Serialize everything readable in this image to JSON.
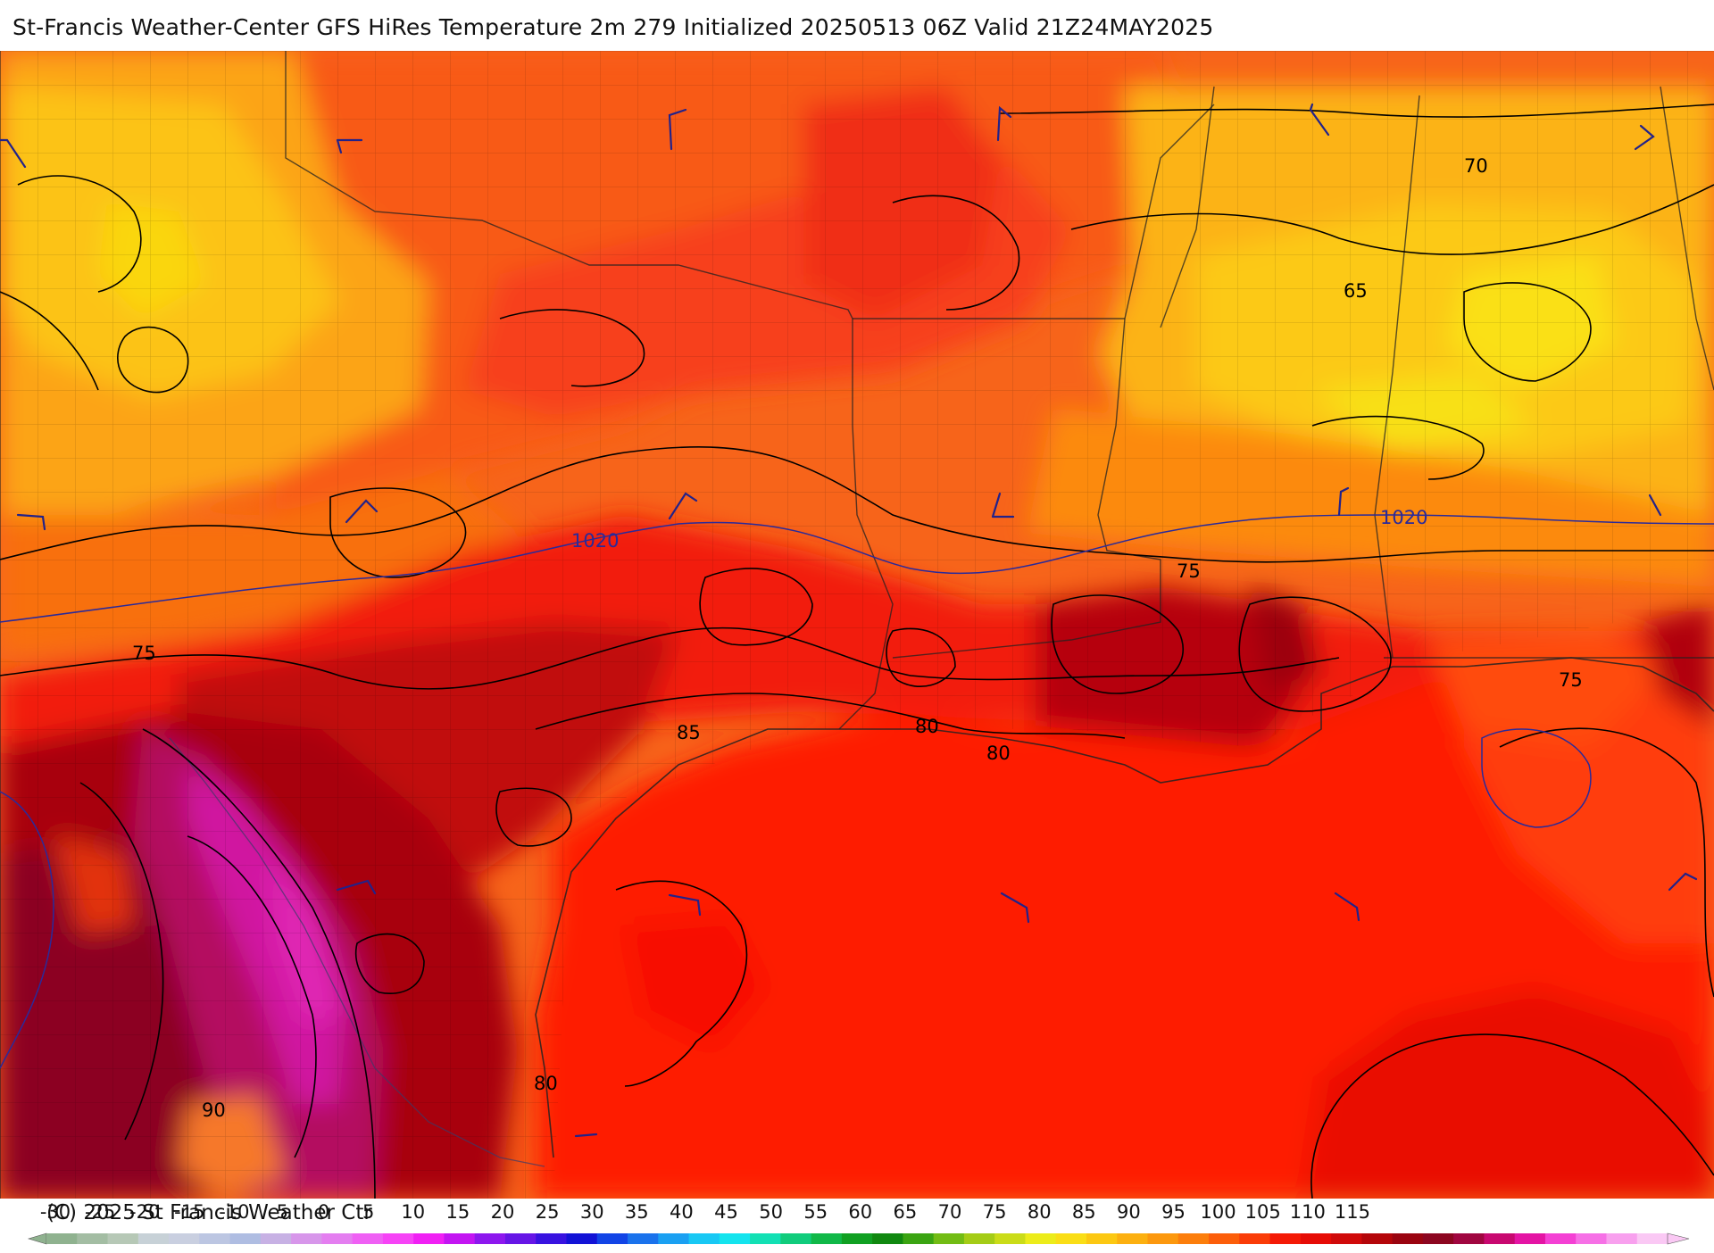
{
  "header": {
    "title": "St-Francis Weather-Center GFS HiRes Temperature 2m  279 Initialized 20250513 06Z Valid 21Z24MAY2025"
  },
  "footer": {
    "copyright": "(C) 2025 St Francis Weather Ctr"
  },
  "map": {
    "variable": "Temperature 2m",
    "isotherm_labels": [
      "70",
      "65",
      "75",
      "75",
      "75",
      "80",
      "80",
      "80",
      "85",
      "90"
    ],
    "isobar_labels": [
      "1020",
      "1020"
    ],
    "isotherm_color": "#000000",
    "isobar_color": "#2a2a9a",
    "wind_barb_color": "#22228a"
  },
  "legend": {
    "ticks": [
      "-30",
      "-25",
      "-20",
      "-15",
      "-10",
      "-5",
      "0",
      "5",
      "10",
      "15",
      "20",
      "25",
      "30",
      "35",
      "40",
      "45",
      "50",
      "55",
      "60",
      "65",
      "70",
      "75",
      "80",
      "85",
      "90",
      "95",
      "100",
      "105",
      "110",
      "115"
    ],
    "colors": [
      "#8fb28f",
      "#a3bda3",
      "#b6c8b6",
      "#c7d1d7",
      "#c9cfe0",
      "#bcc6e2",
      "#afbde2",
      "#c7b1e4",
      "#d796ea",
      "#e47ef0",
      "#ef60f4",
      "#f643f6",
      "#f020f4",
      "#c315f2",
      "#8d17ee",
      "#6615e6",
      "#3812e0",
      "#1212d6",
      "#1244e6",
      "#1a72ec",
      "#1aa0f2",
      "#18c8f4",
      "#14e4ee",
      "#12e0b4",
      "#10cc7c",
      "#10b848",
      "#10a022",
      "#108810",
      "#3aa412",
      "#72bc14",
      "#a4cc16",
      "#cadc18",
      "#ecec1a",
      "#fade16",
      "#fcc812",
      "#fcb010",
      "#fc980e",
      "#fc7e0c",
      "#fc5e0a",
      "#fa3c08",
      "#f41a06",
      "#e60c06",
      "#d00a0a",
      "#b4060a",
      "#9a0410",
      "#8c0620",
      "#a00640",
      "#c80870",
      "#e414a4",
      "#f440d4",
      "#f670e6",
      "#f8a0ee",
      "#fac8f4"
    ]
  }
}
